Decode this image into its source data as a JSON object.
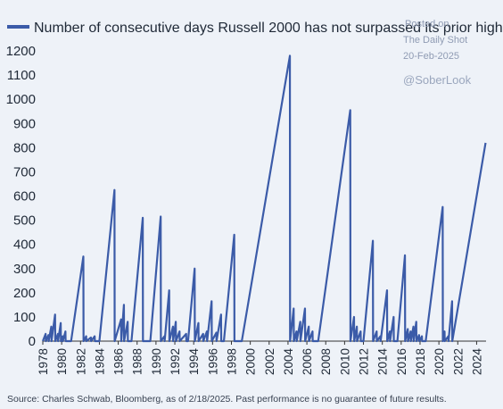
{
  "chart_data": {
    "type": "line",
    "title": "",
    "legend": [
      {
        "name": "Number of consecutive days Russell 2000 has not surpassed its prior high",
        "color": "#3b5ba8"
      }
    ],
    "xlabel": "",
    "ylabel": "",
    "xlim": [
      1978,
      2025
    ],
    "ylim": [
      0,
      1200
    ],
    "x_ticks": [
      "1978",
      "1980",
      "1982",
      "1984",
      "1986",
      "1988",
      "1990",
      "1992",
      "1994",
      "1996",
      "1998",
      "2000",
      "2002",
      "2004",
      "2006",
      "2008",
      "2010",
      "2012",
      "2014",
      "2016",
      "2018",
      "2020",
      "2022",
      "2024"
    ],
    "y_ticks": [
      0,
      100,
      200,
      300,
      400,
      500,
      600,
      700,
      800,
      900,
      1000,
      1100,
      1200
    ],
    "grid": false,
    "series": [
      {
        "name": "Number of consecutive days Russell 2000 has not surpassed its prior high",
        "color": "#3b5ba8",
        "points": [
          [
            1978.0,
            0
          ],
          [
            1978.3,
            30
          ],
          [
            1978.32,
            0
          ],
          [
            1978.6,
            25
          ],
          [
            1978.62,
            0
          ],
          [
            1978.9,
            60
          ],
          [
            1978.92,
            0
          ],
          [
            1979.3,
            110
          ],
          [
            1979.32,
            0
          ],
          [
            1979.6,
            30
          ],
          [
            1979.62,
            0
          ],
          [
            1979.9,
            75
          ],
          [
            1979.92,
            0
          ],
          [
            1980.1,
            20
          ],
          [
            1980.12,
            0
          ],
          [
            1980.4,
            40
          ],
          [
            1980.42,
            0
          ],
          [
            1981.0,
            0
          ],
          [
            1982.3,
            350
          ],
          [
            1982.32,
            0
          ],
          [
            1982.6,
            20
          ],
          [
            1982.62,
            0
          ],
          [
            1983.1,
            15
          ],
          [
            1983.12,
            0
          ],
          [
            1983.5,
            20
          ],
          [
            1983.52,
            0
          ],
          [
            1984.0,
            0
          ],
          [
            1985.6,
            625
          ],
          [
            1985.62,
            0
          ],
          [
            1986.3,
            90
          ],
          [
            1986.32,
            0
          ],
          [
            1986.6,
            150
          ],
          [
            1986.62,
            0
          ],
          [
            1987.0,
            80
          ],
          [
            1987.02,
            0
          ],
          [
            1987.4,
            0
          ],
          [
            1988.6,
            510
          ],
          [
            1988.62,
            0
          ],
          [
            1989.4,
            0
          ],
          [
            1990.5,
            515
          ],
          [
            1990.52,
            0
          ],
          [
            1990.9,
            20
          ],
          [
            1990.92,
            0
          ],
          [
            1991.4,
            210
          ],
          [
            1991.42,
            0
          ],
          [
            1991.8,
            60
          ],
          [
            1991.82,
            0
          ],
          [
            1992.1,
            80
          ],
          [
            1992.12,
            0
          ],
          [
            1992.5,
            40
          ],
          [
            1992.52,
            0
          ],
          [
            1993.2,
            30
          ],
          [
            1993.22,
            0
          ],
          [
            1993.4,
            0
          ],
          [
            1994.1,
            300
          ],
          [
            1994.12,
            0
          ],
          [
            1994.5,
            75
          ],
          [
            1994.52,
            0
          ],
          [
            1995.0,
            30
          ],
          [
            1995.02,
            0
          ],
          [
            1995.4,
            40
          ],
          [
            1995.42,
            0
          ],
          [
            1995.9,
            165
          ],
          [
            1995.92,
            0
          ],
          [
            1996.4,
            35
          ],
          [
            1996.42,
            0
          ],
          [
            1996.9,
            110
          ],
          [
            1996.92,
            0
          ],
          [
            1997.2,
            0
          ],
          [
            1998.3,
            440
          ],
          [
            1998.32,
            0
          ],
          [
            1999.1,
            0
          ],
          [
            2004.2,
            1180
          ],
          [
            2004.22,
            0
          ],
          [
            2004.6,
            135
          ],
          [
            2004.62,
            0
          ],
          [
            2004.9,
            40
          ],
          [
            2004.92,
            0
          ],
          [
            2005.3,
            80
          ],
          [
            2005.32,
            0
          ],
          [
            2005.8,
            135
          ],
          [
            2005.82,
            0
          ],
          [
            2006.2,
            60
          ],
          [
            2006.22,
            0
          ],
          [
            2006.6,
            40
          ],
          [
            2006.62,
            0
          ],
          [
            2007.2,
            0
          ],
          [
            2010.6,
            955
          ],
          [
            2010.62,
            0
          ],
          [
            2011.0,
            100
          ],
          [
            2011.02,
            0
          ],
          [
            2011.3,
            60
          ],
          [
            2011.32,
            0
          ],
          [
            2011.7,
            40
          ],
          [
            2011.72,
            0
          ],
          [
            2012.0,
            0
          ],
          [
            2013.0,
            415
          ],
          [
            2013.02,
            0
          ],
          [
            2013.4,
            40
          ],
          [
            2013.42,
            0
          ],
          [
            2013.8,
            20
          ],
          [
            2013.82,
            0
          ],
          [
            2014.5,
            210
          ],
          [
            2014.52,
            0
          ],
          [
            2014.8,
            40
          ],
          [
            2014.82,
            0
          ],
          [
            2015.2,
            100
          ],
          [
            2015.22,
            0
          ],
          [
            2015.6,
            0
          ],
          [
            2016.4,
            355
          ],
          [
            2016.42,
            0
          ],
          [
            2016.7,
            50
          ],
          [
            2016.72,
            0
          ],
          [
            2017.0,
            40
          ],
          [
            2017.02,
            0
          ],
          [
            2017.3,
            60
          ],
          [
            2017.32,
            0
          ],
          [
            2017.6,
            80
          ],
          [
            2017.62,
            0
          ],
          [
            2017.9,
            25
          ],
          [
            2017.92,
            0
          ],
          [
            2018.2,
            20
          ],
          [
            2018.22,
            0
          ],
          [
            2018.6,
            0
          ],
          [
            2020.4,
            555
          ],
          [
            2020.42,
            0
          ],
          [
            2020.6,
            40
          ],
          [
            2020.62,
            0
          ],
          [
            2021.0,
            20
          ],
          [
            2021.02,
            0
          ],
          [
            2021.4,
            165
          ],
          [
            2021.42,
            0
          ],
          [
            2024.95,
            820
          ]
        ]
      }
    ]
  },
  "watermark": {
    "line1": "Posted on",
    "line2": "The Daily Shot",
    "date": "20-Feb-2025",
    "handle": "@SoberLook"
  },
  "source_note": "Source: Charles Schwab, Bloomberg, as of 2/18/2025. Past performance is no guarantee of future results."
}
